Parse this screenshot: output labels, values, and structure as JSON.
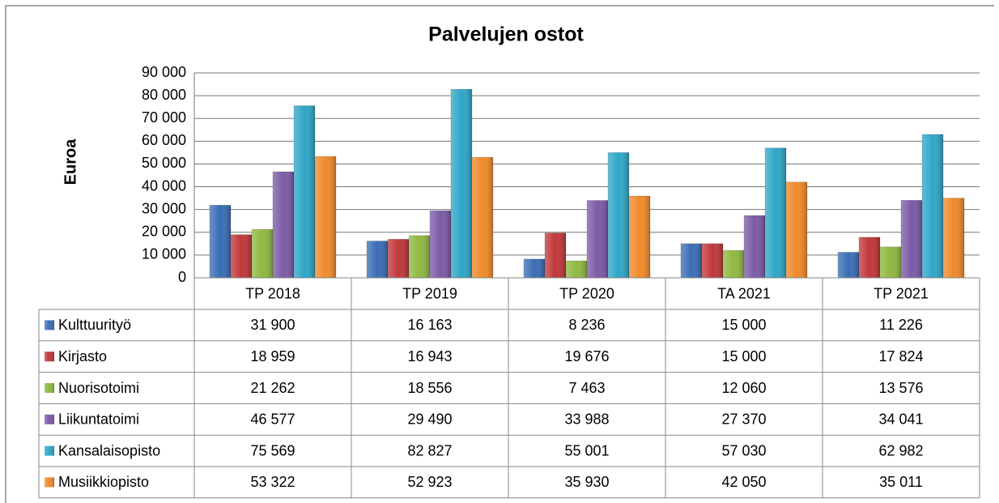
{
  "chart_data": {
    "type": "bar",
    "title": "Palvelujen ostot",
    "y_label": "Euroa",
    "categories": [
      "TP 2018",
      "TP 2019",
      "TP 2020",
      "TA 2021",
      "TP 2021"
    ],
    "series": [
      {
        "name": "Kulttuurityö",
        "color": "#3a6db5",
        "values": [
          31900,
          16163,
          8236,
          15000,
          11226
        ],
        "value_labels": [
          "31 900",
          "16 163",
          "8 236",
          "15 000",
          "11 226"
        ]
      },
      {
        "name": "Kirjasto",
        "color": "#c0373a",
        "values": [
          18959,
          16943,
          19676,
          15000,
          17824
        ],
        "value_labels": [
          "18 959",
          "16 943",
          "19 676",
          "15 000",
          "17 824"
        ]
      },
      {
        "name": "Nuorisotoimi",
        "color": "#8fb840",
        "values": [
          21262,
          18556,
          7463,
          12060,
          13576
        ],
        "value_labels": [
          "21 262",
          "18 556",
          "7 463",
          "12 060",
          "13 576"
        ]
      },
      {
        "name": "Liikuntatoimi",
        "color": "#7b5aa6",
        "values": [
          46577,
          29490,
          33988,
          27370,
          34041
        ],
        "value_labels": [
          "46 577",
          "29 490",
          "33 988",
          "27 370",
          "34 041"
        ]
      },
      {
        "name": "Kansalaisopisto",
        "color": "#2ea6c7",
        "values": [
          75569,
          82827,
          55001,
          57030,
          62982
        ],
        "value_labels": [
          "75 569",
          "82 827",
          "55 001",
          "57 030",
          "62 982"
        ]
      },
      {
        "name": "Musiikkiopisto",
        "color": "#f0892a",
        "values": [
          53322,
          52923,
          35930,
          42050,
          35011
        ],
        "value_labels": [
          "53 322",
          "52 923",
          "35 930",
          "42 050",
          "35 011"
        ]
      }
    ],
    "ylim": [
      0,
      90000
    ],
    "yticks": [
      0,
      {
        "value": 10000,
        "label": "10 000"
      },
      {
        "value": 20000,
        "label": "20 000"
      },
      {
        "value": 30000,
        "label": "30 000"
      },
      {
        "value": 40000,
        "label": "40 000"
      },
      {
        "value": 50000,
        "label": "50 000"
      },
      {
        "value": 60000,
        "label": "60 000"
      },
      {
        "value": 70000,
        "label": "70 000"
      },
      {
        "value": 80000,
        "label": "80 000"
      },
      {
        "value": 90000,
        "label": "90 000"
      }
    ],
    "grid": true
  }
}
